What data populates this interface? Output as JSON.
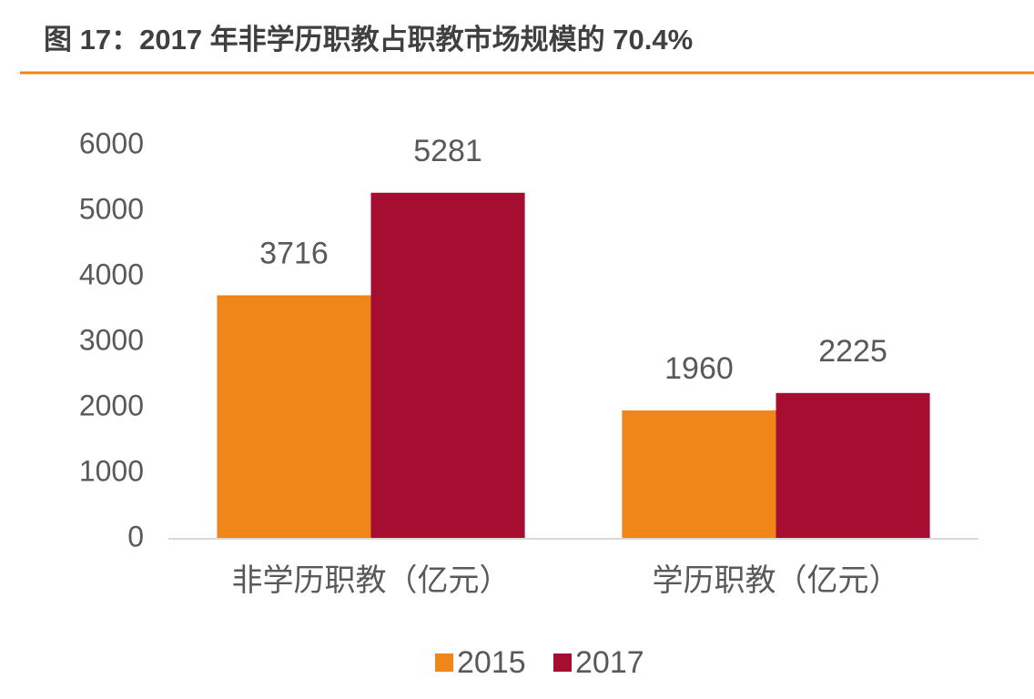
{
  "chart_data": {
    "type": "bar",
    "title": "图 17：2017 年非学历职教占职教市场规模的 70.4%",
    "categories": [
      "非学历职教（亿元）",
      "学历职教（亿元）"
    ],
    "series": [
      {
        "name": "2015",
        "color": "#F0861A",
        "values": [
          3716,
          1960
        ]
      },
      {
        "name": "2017",
        "color": "#A50D31",
        "values": [
          5281,
          2225
        ]
      }
    ],
    "ylim": [
      0,
      6000
    ],
    "yticks": [
      0,
      1000,
      2000,
      3000,
      4000,
      5000,
      6000
    ],
    "grid": false,
    "legend": "bottom"
  }
}
